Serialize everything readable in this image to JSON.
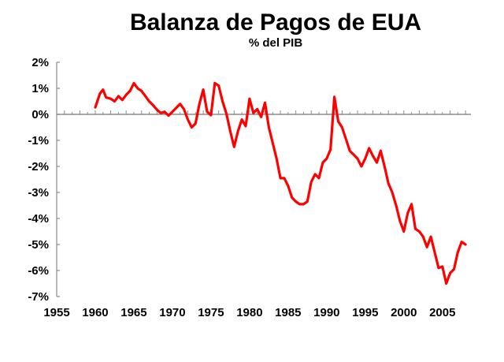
{
  "chart_data": {
    "type": "line",
    "title": "Balanza de Pagos de EUA",
    "subtitle": "% del PIB",
    "xlabel": "",
    "ylabel": "",
    "xlim": [
      1955,
      2008.7
    ],
    "ylim": [
      -7,
      2
    ],
    "x_ticks": [
      "1955",
      "1960",
      "1965",
      "1970",
      "1975",
      "1980",
      "1985",
      "1990",
      "1995",
      "2000",
      "2005"
    ],
    "y_ticks": [
      "2%",
      "1%",
      "0%",
      "-1%",
      "-2%",
      "-3%",
      "-4%",
      "-5%",
      "-6%",
      "-7%"
    ],
    "grid": false,
    "legend": null,
    "series": [
      {
        "name": "Balanza de Pagos (% del PIB)",
        "color": "#ff0000",
        "x": [
          1960.0,
          1960.6,
          1961.0,
          1961.4,
          1962.0,
          1962.5,
          1963.0,
          1963.5,
          1964.0,
          1964.5,
          1965.0,
          1965.5,
          1966.0,
          1966.5,
          1967.0,
          1967.5,
          1968.0,
          1968.5,
          1969.0,
          1969.5,
          1970.0,
          1970.5,
          1971.0,
          1971.5,
          1972.0,
          1972.5,
          1973.0,
          1973.5,
          1974.0,
          1974.5,
          1975.0,
          1975.5,
          1976.0,
          1976.5,
          1977.0,
          1977.5,
          1978.0,
          1978.5,
          1979.0,
          1979.5,
          1980.0,
          1980.5,
          1981.0,
          1981.5,
          1982.0,
          1982.5,
          1983.0,
          1983.5,
          1984.0,
          1984.5,
          1985.0,
          1985.5,
          1986.0,
          1986.5,
          1987.0,
          1987.5,
          1988.0,
          1988.5,
          1989.0,
          1989.5,
          1990.0,
          1990.5,
          1991.0,
          1991.5,
          1992.0,
          1992.5,
          1993.0,
          1993.5,
          1994.0,
          1994.5,
          1995.0,
          1995.5,
          1996.0,
          1996.5,
          1997.0,
          1997.5,
          1998.0,
          1998.5,
          1999.0,
          1999.5,
          2000.0,
          2000.5,
          2001.0,
          2001.5,
          2002.0,
          2002.5,
          2003.0,
          2003.5,
          2004.0,
          2004.5,
          2005.0,
          2005.5,
          2006.0,
          2006.5,
          2007.0,
          2007.5,
          2008.0
        ],
        "values": [
          0.27,
          0.8,
          0.95,
          0.65,
          0.6,
          0.5,
          0.7,
          0.55,
          0.75,
          0.9,
          1.2,
          1.0,
          0.9,
          0.7,
          0.5,
          0.35,
          0.18,
          0.05,
          0.1,
          -0.05,
          0.1,
          0.25,
          0.4,
          0.2,
          -0.2,
          -0.5,
          -0.35,
          0.4,
          0.95,
          0.1,
          -0.03,
          1.2,
          1.1,
          0.5,
          0.03,
          -0.65,
          -1.25,
          -0.65,
          -0.2,
          -0.45,
          0.6,
          0.05,
          0.2,
          -0.1,
          0.45,
          -0.5,
          -1.1,
          -1.7,
          -2.45,
          -2.45,
          -2.75,
          -3.2,
          -3.35,
          -3.45,
          -3.45,
          -3.35,
          -2.6,
          -2.3,
          -2.45,
          -1.85,
          -1.7,
          -1.35,
          0.67,
          -0.27,
          -0.5,
          -0.95,
          -1.4,
          -1.55,
          -1.7,
          -2.0,
          -1.7,
          -1.3,
          -1.6,
          -1.85,
          -1.4,
          -2.0,
          -2.65,
          -3.0,
          -3.5,
          -4.1,
          -4.5,
          -3.8,
          -3.45,
          -4.4,
          -4.5,
          -4.7,
          -5.1,
          -4.7,
          -5.3,
          -5.9,
          -5.85,
          -6.5,
          -6.1,
          -5.95,
          -5.3,
          -4.9,
          -5.0
        ]
      }
    ]
  }
}
